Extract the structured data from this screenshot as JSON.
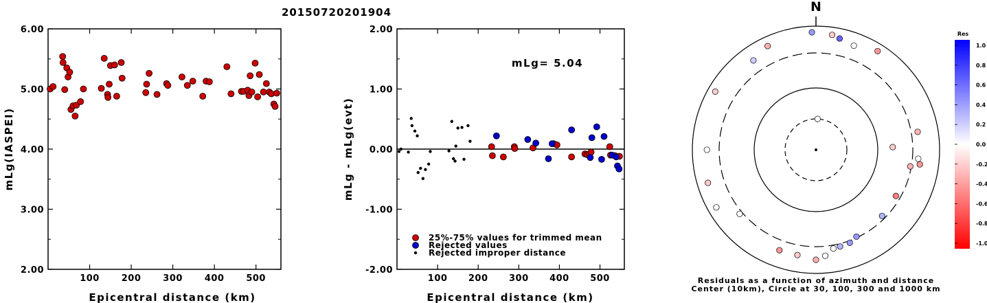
{
  "title": "20150720201904",
  "colors": {
    "trimmed": "#cc0000",
    "rejected": "#0000cc",
    "improper": "#000000",
    "axis": "#000000"
  },
  "chart_data": [
    {
      "type": "scatter",
      "xlabel": "Epicentral distance (km)",
      "ylabel": "mLg(IASPEI)",
      "xlim": [
        0,
        560
      ],
      "ylim": [
        2.0,
        6.0
      ],
      "xticks": [
        100,
        200,
        300,
        400,
        500
      ],
      "ytick_labels": [
        "2.00",
        "3.00",
        "4.00",
        "5.00",
        "6.00"
      ],
      "series": [
        {
          "style": "red-circle",
          "points": [
            [
              5,
              5.0
            ],
            [
              12,
              5.04
            ],
            [
              35,
              5.54
            ],
            [
              36,
              5.44
            ],
            [
              40,
              4.99
            ],
            [
              45,
              5.35
            ],
            [
              48,
              5.2
            ],
            [
              52,
              5.28
            ],
            [
              55,
              4.66
            ],
            [
              60,
              4.72
            ],
            [
              65,
              4.55
            ],
            [
              68,
              4.73
            ],
            [
              78,
              4.79
            ],
            [
              85,
              5.0
            ],
            [
              128,
              5.01
            ],
            [
              135,
              5.51
            ],
            [
              143,
              4.91
            ],
            [
              144,
              4.86
            ],
            [
              147,
              5.08
            ],
            [
              150,
              5.39
            ],
            [
              160,
              5.4
            ],
            [
              165,
              4.88
            ],
            [
              176,
              5.44
            ],
            [
              178,
              5.18
            ],
            [
              235,
              4.94
            ],
            [
              237,
              5.08
            ],
            [
              243,
              5.26
            ],
            [
              262,
              4.91
            ],
            [
              285,
              5.09
            ],
            [
              288,
              5.06
            ],
            [
              322,
              5.2
            ],
            [
              335,
              5.06
            ],
            [
              348,
              5.13
            ],
            [
              372,
              4.88
            ],
            [
              380,
              5.13
            ],
            [
              388,
              5.12
            ],
            [
              430,
              5.37
            ],
            [
              440,
              4.92
            ],
            [
              465,
              4.96
            ],
            [
              470,
              4.96
            ],
            [
              480,
              4.98
            ],
            [
              483,
              4.89
            ],
            [
              486,
              5.22
            ],
            [
              490,
              4.95
            ],
            [
              498,
              5.43
            ],
            [
              504,
              4.87
            ],
            [
              508,
              5.24
            ],
            [
              518,
              4.95
            ],
            [
              525,
              5.09
            ],
            [
              532,
              4.95
            ],
            [
              537,
              4.92
            ],
            [
              543,
              4.75
            ],
            [
              546,
              4.71
            ],
            [
              550,
              4.93
            ]
          ]
        }
      ]
    },
    {
      "type": "scatter",
      "xlabel": "Epicentral distance (km)",
      "ylabel": "mLg - mLg(evt)",
      "annotation": "mLg= 5.04",
      "xlim": [
        0,
        560
      ],
      "ylim": [
        -2.0,
        2.0
      ],
      "xticks": [
        100,
        200,
        300,
        400,
        500
      ],
      "ytick_labels": [
        "-2.00",
        "-1.00",
        "0.00",
        "1.00",
        "2.00"
      ],
      "zero_line": 0,
      "legend": [
        "25%-75% values for trimmed mean",
        "Rejected values",
        "Rejected improper distance"
      ],
      "legend_position": "bottom-left",
      "series": [
        {
          "name": "25%-75% values for trimmed mean",
          "style": "red-circle",
          "points": [
            [
              233,
              0.04
            ],
            [
              235,
              -0.11
            ],
            [
              262,
              -0.13
            ],
            [
              289,
              0.04
            ],
            [
              290,
              0.01
            ],
            [
              335,
              0.02
            ],
            [
              386,
              0.09
            ],
            [
              394,
              0.07
            ],
            [
              430,
              -0.13
            ],
            [
              463,
              -0.08
            ],
            [
              468,
              -0.09
            ],
            [
              474,
              -0.08
            ],
            [
              478,
              -0.05
            ],
            [
              524,
              0.04
            ],
            [
              526,
              -0.1
            ],
            [
              537,
              -0.11
            ],
            [
              548,
              -0.12
            ]
          ]
        },
        {
          "name": "Rejected values",
          "style": "blue-circle",
          "points": [
            [
              245,
              0.22
            ],
            [
              322,
              0.16
            ],
            [
              342,
              0.1
            ],
            [
              373,
              -0.16
            ],
            [
              382,
              0.09
            ],
            [
              430,
              0.32
            ],
            [
              476,
              -0.14
            ],
            [
              480,
              0.19
            ],
            [
              492,
              0.37
            ],
            [
              504,
              -0.17
            ],
            [
              510,
              0.21
            ],
            [
              530,
              -0.1
            ],
            [
              540,
              -0.13
            ],
            [
              543,
              -0.28
            ],
            [
              547,
              -0.33
            ]
          ]
        },
        {
          "name": "Rejected improper distance",
          "style": "black-dot",
          "points": [
            [
              5,
              -0.04
            ],
            [
              10,
              0.0
            ],
            [
              28,
              -0.05
            ],
            [
              35,
              0.51
            ],
            [
              37,
              0.39
            ],
            [
              44,
              0.3
            ],
            [
              50,
              0.22
            ],
            [
              52,
              -0.39
            ],
            [
              58,
              -0.32
            ],
            [
              64,
              -0.49
            ],
            [
              70,
              -0.34
            ],
            [
              78,
              -0.25
            ],
            [
              82,
              -0.04
            ],
            [
              128,
              -0.03
            ],
            [
              135,
              0.46
            ],
            [
              139,
              -0.16
            ],
            [
              143,
              -0.2
            ],
            [
              145,
              0.05
            ],
            [
              150,
              0.35
            ],
            [
              160,
              0.36
            ],
            [
              165,
              -0.17
            ],
            [
              175,
              0.39
            ],
            [
              180,
              0.13
            ]
          ]
        }
      ]
    },
    {
      "type": "scatter",
      "subtype": "polar-residual-map",
      "north_label": "N",
      "caption": [
        "Residuals as a function of azimuth and distance",
        "Center (10km), Circle at 30, 100, 300 and 1000 km"
      ],
      "colorbar_title": "Res",
      "colorbar_tick_labels": [
        "1.0",
        "0.8",
        "0.6",
        "0.4",
        "0.2",
        "0.0",
        "-0.2",
        "-0.4",
        "-0.6",
        "-0.8",
        "-1.0"
      ],
      "rings_km": [
        30,
        100,
        300,
        1000
      ],
      "points": [
        {
          "az": 3,
          "dist": 30,
          "res": 0.0
        },
        {
          "az": 88,
          "dist": 160,
          "res": -0.2
        },
        {
          "az": 100,
          "dist": 290,
          "res": -0.3
        },
        {
          "az": 95,
          "dist": 390,
          "res": 0.0
        },
        {
          "az": 98,
          "dist": 430,
          "res": -0.4
        },
        {
          "az": 80,
          "dist": 400,
          "res": -0.3
        },
        {
          "az": 120,
          "dist": 260,
          "res": -0.5
        },
        {
          "az": 135,
          "dist": 270,
          "res": 0.3
        },
        {
          "az": 155,
          "dist": 290,
          "res": 0.4
        },
        {
          "az": 160,
          "dist": 330,
          "res": 0.4
        },
        {
          "az": 166,
          "dist": 340,
          "res": 0.3
        },
        {
          "az": 170,
          "dist": 350,
          "res": 0.0
        },
        {
          "az": 175,
          "dist": 460,
          "res": 0.0
        },
        {
          "az": 180,
          "dist": 540,
          "res": -0.3
        },
        {
          "az": 190,
          "dist": 470,
          "res": -0.2
        },
        {
          "az": 200,
          "dist": 470,
          "res": -0.4
        },
        {
          "az": 230,
          "dist": 340,
          "res": 0.0
        },
        {
          "az": 240,
          "dist": 680,
          "res": 0.0
        },
        {
          "az": 253,
          "dist": 620,
          "res": -0.2
        },
        {
          "az": 270,
          "dist": 520,
          "res": 0.0
        },
        {
          "az": 300,
          "dist": 720,
          "res": -0.2
        },
        {
          "az": 325,
          "dist": 520,
          "res": 0.2
        },
        {
          "az": 335,
          "dist": 660,
          "res": -0.3
        },
        {
          "az": 358,
          "dist": 760,
          "res": 0.4
        },
        {
          "az": 8,
          "dist": 710,
          "res": -0.2
        },
        {
          "az": 12,
          "dist": 640,
          "res": 0.6
        },
        {
          "az": 20,
          "dist": 560,
          "res": 0.0
        },
        {
          "az": 32,
          "dist": 720,
          "res": -0.4
        }
      ]
    }
  ]
}
